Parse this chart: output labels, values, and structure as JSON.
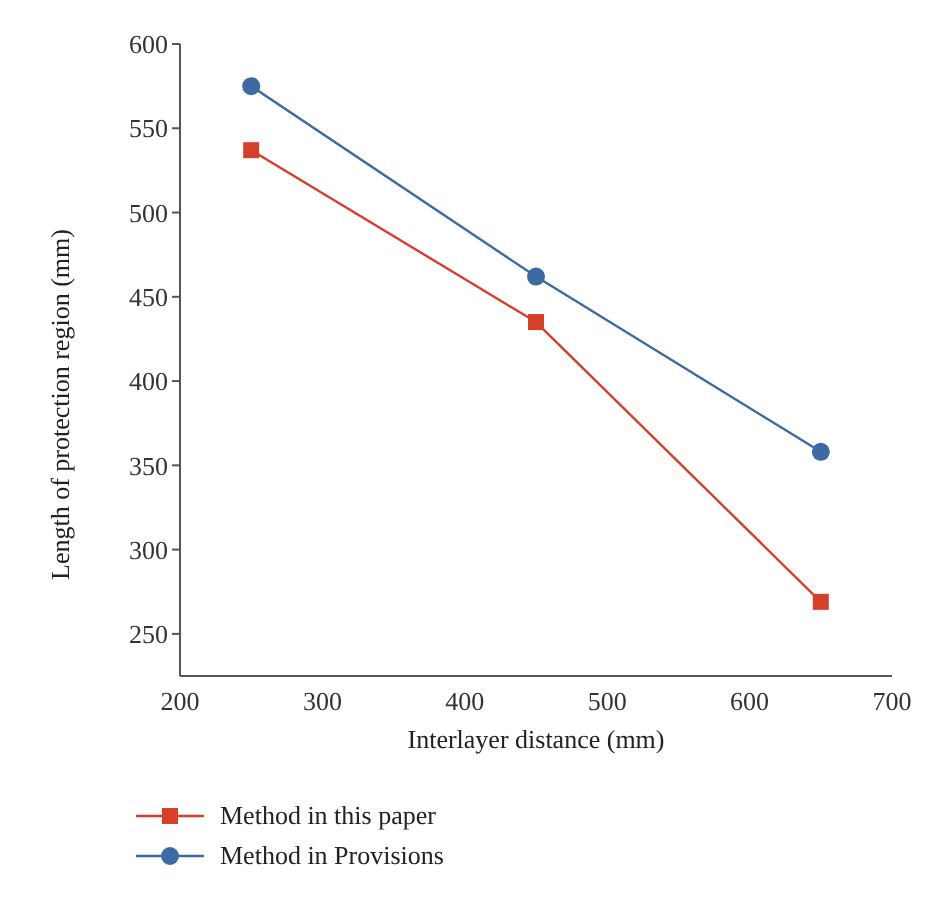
{
  "chart_data": {
    "type": "line",
    "xlabel": "Interlayer distance (mm)",
    "ylabel": "Length of protection region (mm)",
    "x": [
      250,
      450,
      650
    ],
    "series": [
      {
        "name": "Method in this paper",
        "color": "#d4402a",
        "values": [
          537,
          435,
          269
        ],
        "marker": "square"
      },
      {
        "name": "Method in Provisions",
        "color": "#3d6aa3",
        "values": [
          575,
          462,
          358
        ],
        "marker": "circle"
      }
    ],
    "xlim": [
      200,
      700
    ],
    "xticks": [
      200,
      300,
      400,
      500,
      600,
      700
    ],
    "ylim": [
      225,
      600
    ],
    "yticks": [
      250,
      300,
      350,
      400,
      450,
      500,
      550,
      600
    ],
    "grid": false,
    "legend": "bottom",
    "line_style": "solid"
  }
}
